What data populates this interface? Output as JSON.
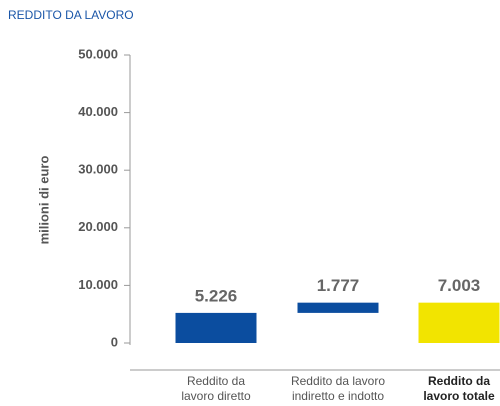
{
  "chart_data": {
    "type": "waterfall",
    "title": "REDDITO DA LAVORO",
    "y_label": "milioni di euro",
    "categories": [
      "Reddito da\nlavoro diretto",
      "Reddito da lavoro\nindiretto e indotto",
      "Reddito da\nlavoro totale"
    ],
    "values": [
      5226,
      1777,
      7003
    ],
    "value_labels": [
      "5.226",
      "1.777",
      "7.003"
    ],
    "is_total": [
      false,
      false,
      true
    ],
    "colors": [
      "#0b4d9f",
      "#0b4d9f",
      "#f2e400"
    ],
    "ylim": [
      0,
      50000
    ],
    "yticks": [
      {
        "value": 0,
        "label": "0"
      },
      {
        "value": 10000,
        "label": "10.000"
      },
      {
        "value": 20000,
        "label": "20.000"
      },
      {
        "value": 30000,
        "label": "30.000"
      },
      {
        "value": 40000,
        "label": "40.000"
      },
      {
        "value": 50000,
        "label": "50.000"
      }
    ],
    "grid": false
  }
}
